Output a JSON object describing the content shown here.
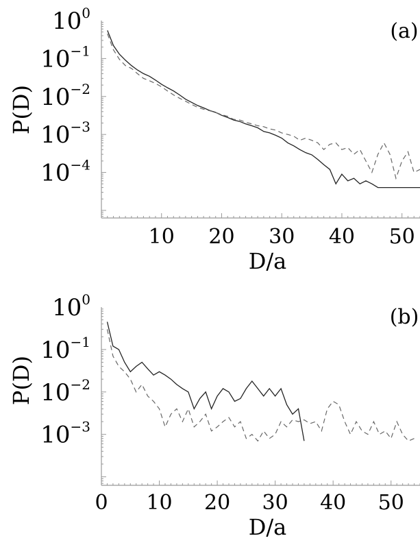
{
  "chart_data": [
    {
      "type": "line",
      "panel_label": "(a)",
      "xlabel": "D/a",
      "ylabel": "P(D)",
      "yscale": "log",
      "xlim": [
        0,
        53
      ],
      "ylim_log10": [
        -5.2,
        0
      ],
      "x_ticks": [
        10,
        20,
        30,
        40,
        50
      ],
      "y_ticks": [
        {
          "base": "10",
          "exp": "0",
          "log10": 0
        },
        {
          "base": "10",
          "exp": "−1",
          "log10": -1
        },
        {
          "base": "10",
          "exp": "−2",
          "log10": -2
        },
        {
          "base": "10",
          "exp": "−3",
          "log10": -3
        },
        {
          "base": "10",
          "exp": "−4",
          "log10": -4
        }
      ],
      "series": [
        {
          "style": "solid",
          "points": [
            [
              1,
              0.55
            ],
            [
              2,
              0.22
            ],
            [
              3,
              0.13
            ],
            [
              4,
              0.09
            ],
            [
              5,
              0.065
            ],
            [
              6,
              0.05
            ],
            [
              7,
              0.04
            ],
            [
              8,
              0.034
            ],
            [
              9,
              0.027
            ],
            [
              10,
              0.021
            ],
            [
              11,
              0.017
            ],
            [
              12,
              0.014
            ],
            [
              13,
              0.011
            ],
            [
              14,
              0.0085
            ],
            [
              15,
              0.007
            ],
            [
              16,
              0.0058
            ],
            [
              17,
              0.005
            ],
            [
              18,
              0.0043
            ],
            [
              19,
              0.0038
            ],
            [
              20,
              0.0032
            ],
            [
              21,
              0.0028
            ],
            [
              22,
              0.0024
            ],
            [
              23,
              0.0022
            ],
            [
              24,
              0.0019
            ],
            [
              25,
              0.0017
            ],
            [
              26,
              0.0015
            ],
            [
              27,
              0.0012
            ],
            [
              28,
              0.0011
            ],
            [
              29,
              0.00095
            ],
            [
              30,
              0.0008
            ],
            [
              31,
              0.0006
            ],
            [
              32,
              0.0005
            ],
            [
              33,
              0.0004
            ],
            [
              34,
              0.00033
            ],
            [
              35,
              0.00029
            ],
            [
              36,
              0.00022
            ],
            [
              37,
              0.00016
            ],
            [
              38,
              0.00012
            ],
            [
              39,
              5e-05
            ],
            [
              40,
              9e-05
            ],
            [
              41,
              6e-05
            ],
            [
              42,
              7e-05
            ],
            [
              43,
              5e-05
            ],
            [
              44,
              6e-05
            ],
            [
              45,
              5e-05
            ],
            [
              46,
              4e-05
            ],
            [
              47,
              4e-05
            ],
            [
              50,
              4e-05
            ],
            [
              53,
              4e-05
            ]
          ]
        },
        {
          "style": "dashed",
          "points": [
            [
              1,
              0.45
            ],
            [
              2,
              0.17
            ],
            [
              3,
              0.095
            ],
            [
              4,
              0.065
            ],
            [
              5,
              0.055
            ],
            [
              6,
              0.04
            ],
            [
              7,
              0.03
            ],
            [
              8,
              0.026
            ],
            [
              9,
              0.022
            ],
            [
              10,
              0.018
            ],
            [
              11,
              0.014
            ],
            [
              12,
              0.011
            ],
            [
              13,
              0.009
            ],
            [
              14,
              0.0075
            ],
            [
              15,
              0.0062
            ],
            [
              16,
              0.0052
            ],
            [
              17,
              0.0046
            ],
            [
              18,
              0.0042
            ],
            [
              19,
              0.0038
            ],
            [
              20,
              0.0033
            ],
            [
              21,
              0.003
            ],
            [
              22,
              0.0025
            ],
            [
              23,
              0.0024
            ],
            [
              24,
              0.0021
            ],
            [
              25,
              0.0019
            ],
            [
              26,
              0.0017
            ],
            [
              27,
              0.0016
            ],
            [
              28,
              0.0014
            ],
            [
              29,
              0.0013
            ],
            [
              30,
              0.0011
            ],
            [
              31,
              0.001
            ],
            [
              32,
              0.0009
            ],
            [
              33,
              0.0007
            ],
            [
              34,
              0.0008
            ],
            [
              35,
              0.0007
            ],
            [
              36,
              0.0006
            ],
            [
              37,
              0.0004
            ],
            [
              38,
              0.00055
            ],
            [
              39,
              0.0006
            ],
            [
              40,
              0.0004
            ],
            [
              41,
              0.00045
            ],
            [
              42,
              0.0003
            ],
            [
              43,
              0.0004
            ],
            [
              44,
              0.0002
            ],
            [
              45,
              0.0001
            ],
            [
              46,
              0.0003
            ],
            [
              47,
              0.0006
            ],
            [
              48,
              0.0003
            ],
            [
              49,
              7e-05
            ],
            [
              50,
              0.0002
            ],
            [
              51,
              0.00035
            ],
            [
              52,
              0.0001
            ],
            [
              53,
              0.00012
            ]
          ]
        }
      ]
    },
    {
      "type": "line",
      "panel_label": "(b)",
      "xlabel": "D/a",
      "ylabel": "P(D)",
      "yscale": "log",
      "xlim": [
        0,
        55
      ],
      "ylim_log10": [
        -4.2,
        0
      ],
      "x_ticks": [
        0,
        10,
        20,
        30,
        40,
        50
      ],
      "y_ticks": [
        {
          "base": "10",
          "exp": "0",
          "log10": 0
        },
        {
          "base": "10",
          "exp": "−1",
          "log10": -1
        },
        {
          "base": "10",
          "exp": "−2",
          "log10": -2
        },
        {
          "base": "10",
          "exp": "−3",
          "log10": -3
        }
      ],
      "series": [
        {
          "style": "solid",
          "points": [
            [
              1,
              0.45
            ],
            [
              2,
              0.12
            ],
            [
              3,
              0.1
            ],
            [
              4,
              0.05
            ],
            [
              5,
              0.03
            ],
            [
              6,
              0.04
            ],
            [
              7,
              0.05
            ],
            [
              8,
              0.035
            ],
            [
              9,
              0.025
            ],
            [
              10,
              0.03
            ],
            [
              11,
              0.025
            ],
            [
              12,
              0.02
            ],
            [
              13,
              0.015
            ],
            [
              14,
              0.012
            ],
            [
              15,
              0.01
            ],
            [
              16,
              0.004
            ],
            [
              17,
              0.007
            ],
            [
              18,
              0.01
            ],
            [
              19,
              0.004
            ],
            [
              20,
              0.008
            ],
            [
              21,
              0.012
            ],
            [
              22,
              0.01
            ],
            [
              23,
              0.006
            ],
            [
              24,
              0.007
            ],
            [
              25,
              0.012
            ],
            [
              26,
              0.018
            ],
            [
              27,
              0.012
            ],
            [
              28,
              0.008
            ],
            [
              29,
              0.012
            ],
            [
              30,
              0.008
            ],
            [
              31,
              0.012
            ],
            [
              32,
              0.005
            ],
            [
              33,
              0.003
            ],
            [
              34,
              0.004
            ],
            [
              35,
              0.0007
            ]
          ]
        },
        {
          "style": "dashed",
          "points": [
            [
              1,
              0.3
            ],
            [
              2,
              0.07
            ],
            [
              3,
              0.04
            ],
            [
              4,
              0.03
            ],
            [
              5,
              0.02
            ],
            [
              6,
              0.01
            ],
            [
              7,
              0.015
            ],
            [
              8,
              0.008
            ],
            [
              9,
              0.006
            ],
            [
              10,
              0.004
            ],
            [
              11,
              0.0015
            ],
            [
              12,
              0.003
            ],
            [
              13,
              0.004
            ],
            [
              14,
              0.002
            ],
            [
              15,
              0.004
            ],
            [
              16,
              0.0015
            ],
            [
              17,
              0.002
            ],
            [
              18,
              0.003
            ],
            [
              19,
              0.0012
            ],
            [
              20,
              0.0015
            ],
            [
              21,
              0.002
            ],
            [
              22,
              0.0025
            ],
            [
              23,
              0.0015
            ],
            [
              24,
              0.002
            ],
            [
              25,
              0.0008
            ],
            [
              26,
              0.001
            ],
            [
              27,
              0.0007
            ],
            [
              28,
              0.0012
            ],
            [
              29,
              0.0008
            ],
            [
              30,
              0.001
            ],
            [
              31,
              0.002
            ],
            [
              32,
              0.0015
            ],
            [
              33,
              0.0022
            ],
            [
              34,
              0.002
            ],
            [
              35,
              0.0022
            ],
            [
              36,
              0.0018
            ],
            [
              37,
              0.002
            ],
            [
              38,
              0.0012
            ],
            [
              39,
              0.004
            ],
            [
              40,
              0.006
            ],
            [
              41,
              0.005
            ],
            [
              42,
              0.002
            ],
            [
              43,
              0.001
            ],
            [
              44,
              0.002
            ],
            [
              45,
              0.0012
            ],
            [
              46,
              0.001
            ],
            [
              47,
              0.002
            ],
            [
              48,
              0.001
            ],
            [
              49,
              0.0012
            ],
            [
              50,
              0.0008
            ],
            [
              51,
              0.002
            ],
            [
              52,
              0.001
            ],
            [
              53,
              0.0007
            ],
            [
              54,
              0.0008
            ]
          ]
        }
      ]
    }
  ]
}
